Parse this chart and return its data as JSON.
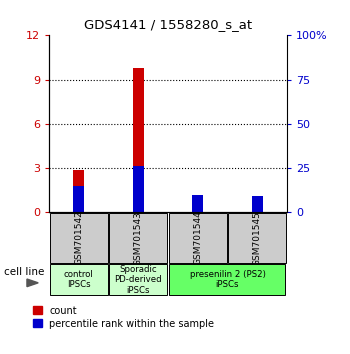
{
  "title": "GDS4141 / 1558280_s_at",
  "samples": [
    "GSM701542",
    "GSM701543",
    "GSM701544",
    "GSM701545"
  ],
  "count_values": [
    2.9,
    9.8,
    0.8,
    0.7
  ],
  "percentile_values": [
    15.0,
    26.0,
    10.0,
    9.0
  ],
  "ylim_left": [
    0,
    12
  ],
  "ylim_right": [
    0,
    100
  ],
  "yticks_left": [
    0,
    3,
    6,
    9,
    12
  ],
  "yticks_right": [
    0,
    25,
    50,
    75,
    100
  ],
  "ytick_labels_left": [
    "0",
    "3",
    "6",
    "9",
    "12"
  ],
  "ytick_labels_right": [
    "0",
    "25",
    "50",
    "75",
    "100%"
  ],
  "bar_width": 0.18,
  "count_color": "#cc0000",
  "percentile_color": "#0000cc",
  "sample_box_color": "#cccccc",
  "cell_line_label": "cell line",
  "legend_count": "count",
  "legend_percentile": "percentile rank within the sample",
  "grid_color": "#000000",
  "left_tick_color": "#cc0000",
  "right_tick_color": "#0000cc",
  "group_info": [
    {
      "start": 0,
      "end": 0,
      "color": "#ccffcc",
      "label": "control\nIPSCs"
    },
    {
      "start": 1,
      "end": 1,
      "color": "#ccffcc",
      "label": "Sporadic\nPD-derived\niPSCs"
    },
    {
      "start": 2,
      "end": 3,
      "color": "#66ff66",
      "label": "presenilin 2 (PS2)\niPSCs"
    }
  ]
}
